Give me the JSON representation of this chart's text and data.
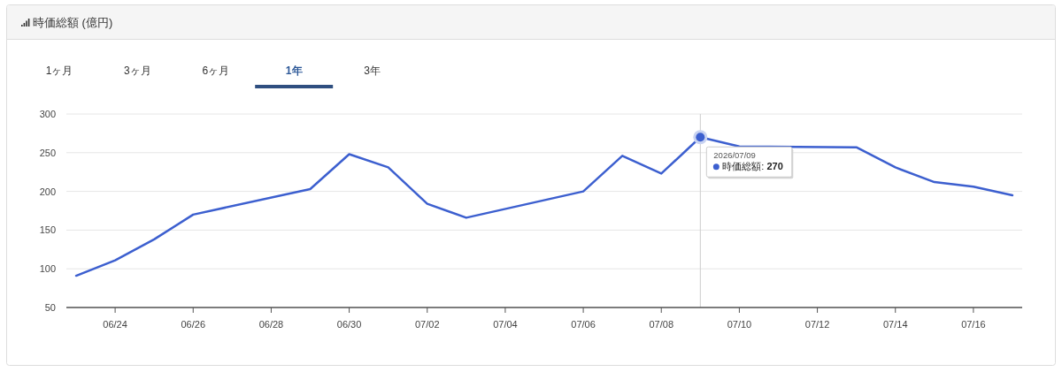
{
  "chart_data": {
    "type": "line",
    "title": "時価総額 (億円)",
    "x": [
      "2026-06-23",
      "2026-06-24",
      "2026-06-25",
      "2026-06-26",
      "2026-06-29",
      "2026-06-30",
      "2026-07-01",
      "2026-07-02",
      "2026-07-03",
      "2026-07-06",
      "2026-07-07",
      "2026-07-08",
      "2026-07-09",
      "2026-07-10",
      "2026-07-13",
      "2026-07-14",
      "2026-07-15",
      "2026-07-16",
      "2026-07-17"
    ],
    "series": [
      {
        "color": "#3c5fcf",
        "values": [
          91,
          111,
          138,
          170,
          203,
          248,
          231,
          184,
          166,
          200,
          246,
          223,
          270,
          258,
          257,
          231,
          212,
          206,
          195
        ]
      }
    ],
    "xlim": [
      "2026-06-22T18:00",
      "2026-07-17T06:00"
    ],
    "xticks": [
      {
        "value": "2026-06-24",
        "label": "06/24"
      },
      {
        "value": "2026-06-26",
        "label": "06/26"
      },
      {
        "value": "2026-06-28",
        "label": "06/28"
      },
      {
        "value": "2026-06-30",
        "label": "06/30"
      },
      {
        "value": "2026-07-02",
        "label": "07/02"
      },
      {
        "value": "2026-07-04",
        "label": "07/04"
      },
      {
        "value": "2026-07-06",
        "label": "07/06"
      },
      {
        "value": "2026-07-08",
        "label": "07/08"
      },
      {
        "value": "2026-07-10",
        "label": "07/10"
      },
      {
        "value": "2026-07-12",
        "label": "07/12"
      },
      {
        "value": "2026-07-14",
        "label": "07/14"
      },
      {
        "value": "2026-07-16",
        "label": "07/16"
      }
    ],
    "ylim": [
      50,
      300
    ],
    "yticks": [
      50,
      100,
      150,
      200,
      250,
      300
    ],
    "grid": "y",
    "line_style": "solid",
    "ref_lines": [
      {
        "axis": "x",
        "value": "2026-07-09",
        "color": "#cccccc"
      }
    ],
    "annotations": [
      "1ヶ月",
      "3ヶ月",
      "6ヶ月",
      "**1年**",
      "3年",
      {
        "text": "2026/07/09\n時価総額: **270**",
        "x": "2026-07-09",
        "y": 270
      }
    ]
  }
}
